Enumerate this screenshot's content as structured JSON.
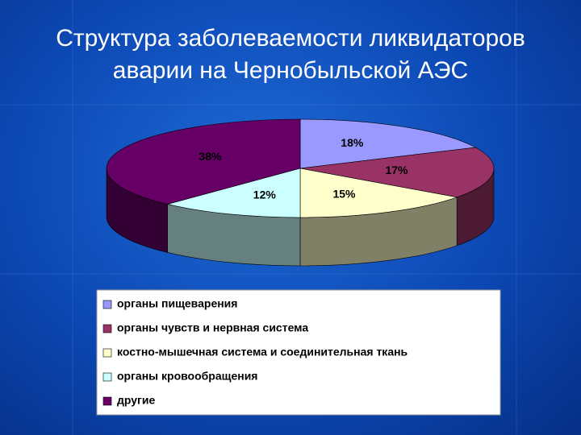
{
  "chart_data": {
    "type": "pie3d",
    "title": "Структура заболеваемости ликвидаторов аварии на Чернобыльской АЭС",
    "categories": [
      "органы пищеварения",
      "органы чувств и нервная система",
      "костно-мышечная система и соединительная ткань",
      "органы кровообращения",
      "другие"
    ],
    "values": [
      18,
      17,
      15,
      12,
      38
    ],
    "value_labels": [
      "18%",
      "17%",
      "15%",
      "12%",
      "38%"
    ],
    "colors": [
      "#9999ff",
      "#993366",
      "#ffffcc",
      "#ccffff",
      "#660066"
    ],
    "legend": "bottom"
  }
}
